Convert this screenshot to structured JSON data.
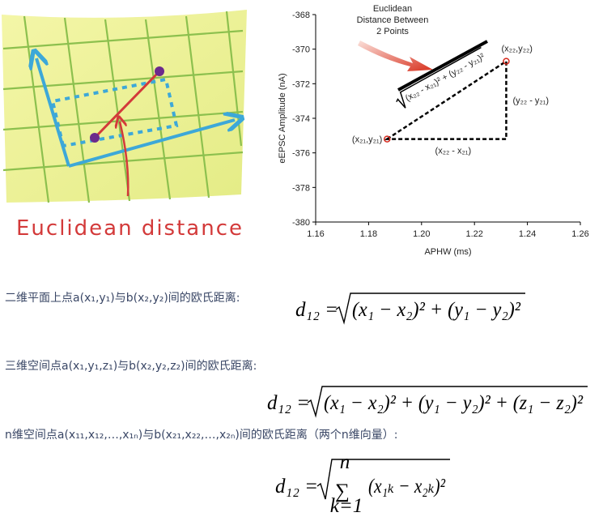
{
  "illustration": {
    "caption": "Euclidean distance"
  },
  "chart_data": {
    "type": "scatter",
    "annotation": [
      "Euclidean",
      "Distance Between",
      "2 Points"
    ],
    "x_label": "APHW (ms)",
    "y_label": "eEPSC Amplitude (nA)",
    "x": [
      1.187,
      1.232
    ],
    "values": [
      -375.2,
      -370.7
    ],
    "point_labels": [
      "(x₂₁,y₂₁)",
      "(x₂₂,y₂₂)"
    ],
    "color": "#d62a1e",
    "xlim": [
      1.16,
      1.26
    ],
    "xticks": [
      1.16,
      1.18,
      {
        "value": 1.2,
        "label": "1.20"
      },
      1.22,
      1.24,
      1.26
    ],
    "ylim": [
      -380,
      -368
    ],
    "yticks": [
      -368,
      -370,
      -372,
      -374,
      -376,
      -378,
      -380
    ],
    "dx_label": "(x₂₂ - x₂₁)",
    "dy_label": "(y₂₂ - y₂₁)",
    "formula_radicand": "(x₂₂ - x₂₁)² + (y₂₂ - y₂₁)²"
  },
  "formulas": [
    {
      "caption": "二维平面上点a(x₁,y₁)与b(x₂,y₂)间的欧氏距离:",
      "lhs": "d₁₂ =",
      "radicand": "(x₁ − x₂)² + (y₁ − y₂)²"
    },
    {
      "caption": "三维空间点a(x₁,y₁,z₁)与b(x₂,y₂,z₂)间的欧氏距离:",
      "lhs": "d₁₂ =",
      "radicand": "(x₁ − x₂)² + (y₁ − y₂)² + (z₁ − z₂)²"
    },
    {
      "caption": "n维空间点a(x₁₁,x₁₂,…,x₁ₙ)与b(x₂₁,x₂₂,…,x₂ₙ)间的欧氏距离（两个n维向量）:",
      "lhs": "d₁₂ =",
      "operator": "∑",
      "upper": "n",
      "lower": "k=1",
      "term": "(x₁ₖ − x₂ₖ)²"
    }
  ]
}
